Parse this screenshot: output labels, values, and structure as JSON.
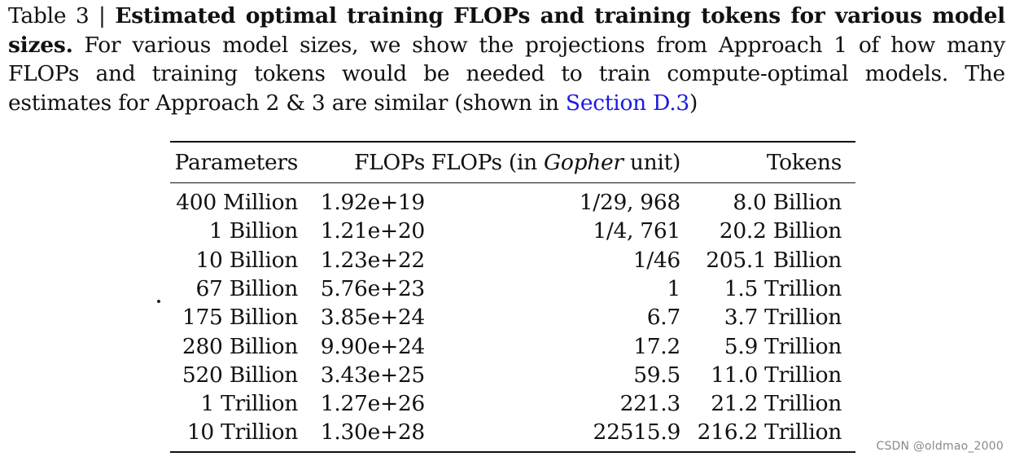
{
  "caption": {
    "label": "Table 3 | ",
    "title": "Estimated optimal training FLOPs and training tokens for various model sizes.",
    "body": " For various model sizes, we show the projections from Approach 1 of how many FLOPs and training tokens would be needed to train compute-optimal models. The estimates for Approach 2 & 3 are similar (shown in ",
    "link": "Section D.3",
    "end": ")"
  },
  "table": {
    "headers": {
      "parameters": "Parameters",
      "flops": "FLOPs",
      "flops_gopher_prefix": "FLOPs (in ",
      "flops_gopher_italic": "Gopher",
      "flops_gopher_suffix": " unit)",
      "tokens": "Tokens"
    },
    "rows": [
      {
        "parameters": "400 Million",
        "flops": "1.92e+19",
        "gopher": "1/29, 968",
        "tokens": "8.0 Billion"
      },
      {
        "parameters": "1 Billion",
        "flops": "1.21e+20",
        "gopher": "1/4, 761",
        "tokens": "20.2 Billion"
      },
      {
        "parameters": "10 Billion",
        "flops": "1.23e+22",
        "gopher": "1/46",
        "tokens": "205.1 Billion"
      },
      {
        "parameters": "67 Billion",
        "flops": "5.76e+23",
        "gopher": "1",
        "tokens": "1.5 Trillion"
      },
      {
        "parameters": "175 Billion",
        "flops": "3.85e+24",
        "gopher": "6.7",
        "tokens": "3.7 Trillion"
      },
      {
        "parameters": "280 Billion",
        "flops": "9.90e+24",
        "gopher": "17.2",
        "tokens": "5.9 Trillion"
      },
      {
        "parameters": "520 Billion",
        "flops": "3.43e+25",
        "gopher": "59.5",
        "tokens": "11.0 Trillion"
      },
      {
        "parameters": "1 Trillion",
        "flops": "1.27e+26",
        "gopher": "221.3",
        "tokens": "21.2 Trillion"
      },
      {
        "parameters": "10 Trillion",
        "flops": "1.30e+28",
        "gopher": "22515.9",
        "tokens": "216.2 Trillion"
      }
    ]
  },
  "watermark": "CSDN @oldmao_2000"
}
